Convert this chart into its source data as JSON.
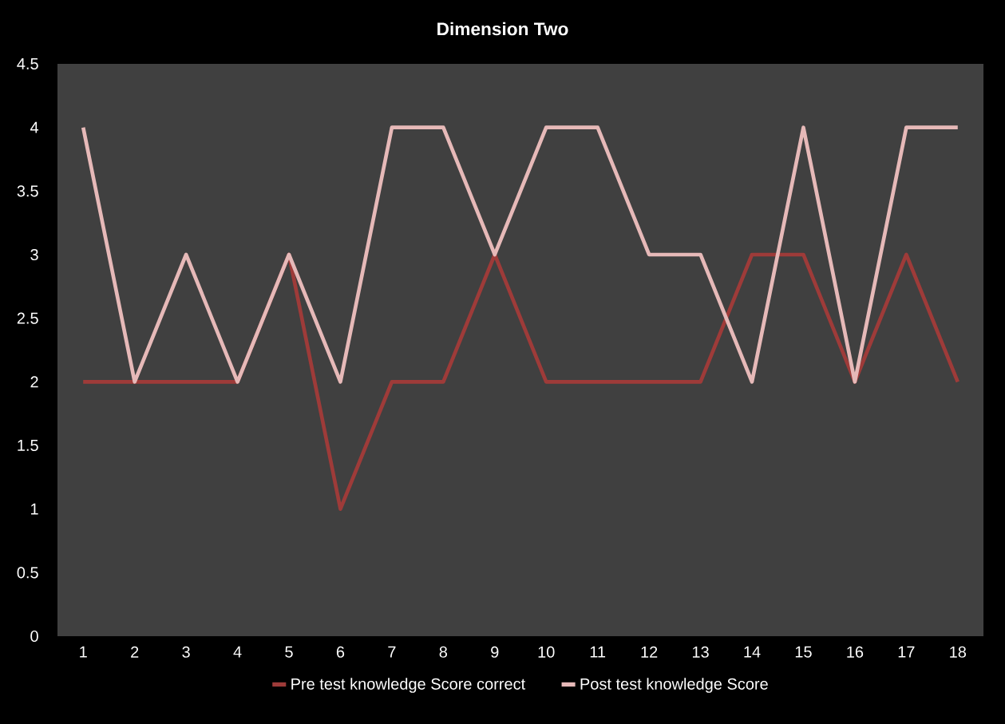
{
  "chart_data": {
    "type": "line",
    "title": "Dimension Two",
    "categories": [
      "1",
      "2",
      "3",
      "4",
      "5",
      "6",
      "7",
      "8",
      "9",
      "10",
      "11",
      "12",
      "13",
      "14",
      "15",
      "16",
      "17",
      "18"
    ],
    "series": [
      {
        "name": "Pre test knowledge Score correct",
        "color": "#9e3b39",
        "values": [
          2,
          2,
          2,
          2,
          3,
          1,
          2,
          2,
          3,
          2,
          2,
          2,
          2,
          3,
          3,
          2,
          3,
          2
        ]
      },
      {
        "name": "Post test knowledge Score",
        "color": "#e6b9b8",
        "values": [
          4,
          2,
          3,
          2,
          3,
          2,
          4,
          4,
          3,
          4,
          4,
          3,
          3,
          2,
          4,
          2,
          4,
          4
        ]
      }
    ],
    "ylim": [
      0,
      4.5
    ],
    "yticks": [
      0,
      0.5,
      1,
      1.5,
      2,
      2.5,
      3,
      3.5,
      4,
      4.5
    ],
    "grid": false,
    "legend": "bottom",
    "marker": "none",
    "line_style": "solid"
  }
}
